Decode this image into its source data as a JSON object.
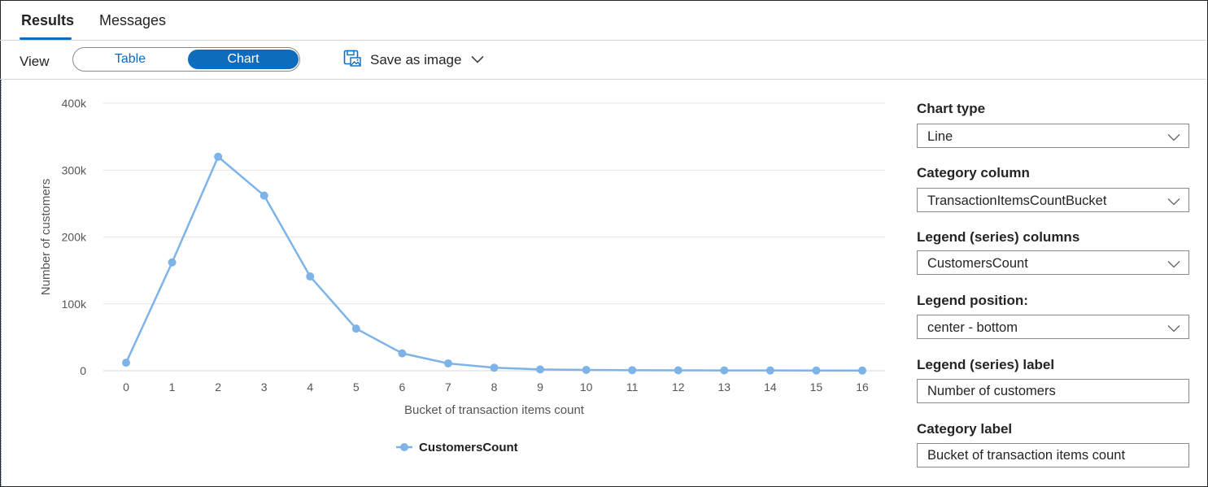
{
  "tabs": [
    {
      "label": "Results",
      "active": true
    },
    {
      "label": "Messages",
      "active": false
    }
  ],
  "toolbar": {
    "view_label": "View",
    "view_options": [
      "Table",
      "Chart"
    ],
    "selected_view": "Chart",
    "save_label": "Save as image",
    "save_icon": "save-image-icon"
  },
  "chart_data": {
    "type": "line",
    "categories": [
      "0",
      "1",
      "2",
      "3",
      "4",
      "5",
      "6",
      "7",
      "8",
      "9",
      "10",
      "11",
      "12",
      "13",
      "14",
      "15",
      "16"
    ],
    "series": [
      {
        "name": "CustomersCount",
        "values": [
          12000,
          162000,
          320000,
          262000,
          141000,
          63000,
          26000,
          11000,
          4500,
          2000,
          1200,
          800,
          600,
          500,
          400,
          300,
          250
        ]
      }
    ],
    "yticks": [
      0,
      100000,
      200000,
      300000,
      400000
    ],
    "ytick_labels": [
      "0",
      "100k",
      "200k",
      "300k",
      "400k"
    ],
    "ylim": [
      0,
      400000
    ],
    "xlabel": "Bucket of transaction items count",
    "ylabel": "Number of customers",
    "legend_position": "center-bottom",
    "grid": true,
    "color": "#7eb3e8"
  },
  "settings": {
    "chart_type": {
      "label": "Chart type",
      "value": "Line"
    },
    "category_column": {
      "label": "Category column",
      "value": "TransactionItemsCountBucket"
    },
    "legend_columns": {
      "label": "Legend (series) columns",
      "value": "CustomersCount"
    },
    "legend_position": {
      "label": "Legend position:",
      "value": "center - bottom"
    },
    "legend_label": {
      "label": "Legend (series) label",
      "value": "Number of customers"
    },
    "category_label": {
      "label": "Category label",
      "value": "Bucket of transaction items count"
    }
  }
}
